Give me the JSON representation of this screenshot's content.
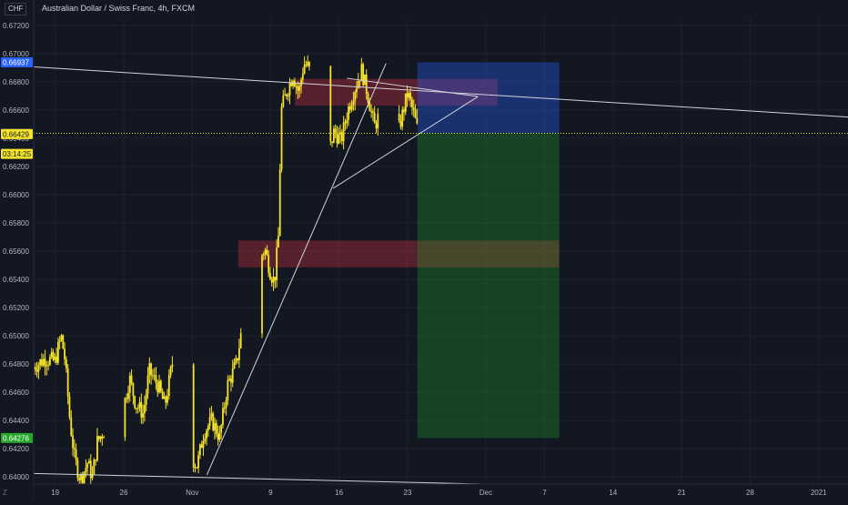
{
  "header": {
    "currency_badge": "CHF",
    "title": "Australian Dollar / Swiss Franc, 4h, FXCM"
  },
  "corner_label": "Z",
  "price_axis": {
    "ticks": [
      0.672,
      0.67,
      0.668,
      0.666,
      0.664,
      0.662,
      0.66,
      0.658,
      0.656,
      0.654,
      0.652,
      0.65,
      0.648,
      0.646,
      0.644,
      0.642,
      0.64
    ],
    "tick_labels": [
      "0.67200",
      "0.67000",
      "0.66800",
      "0.66600",
      "0.66400",
      "0.66200",
      "0.66000",
      "0.65800",
      "0.65600",
      "0.65400",
      "0.65200",
      "0.65000",
      "0.64800",
      "0.64600",
      "0.64400",
      "0.64200",
      "0.64000"
    ],
    "badges": [
      {
        "label": "0.66937",
        "value": 0.66937,
        "bg": "#2962ff",
        "fg": "#ffffff"
      },
      {
        "label": "0.66435",
        "value": 0.66435,
        "bg": "#363a45",
        "fg": "#ffffff"
      },
      {
        "label": "0.66429",
        "value": 0.66429,
        "bg": "#f5e22b",
        "fg": "#131722"
      },
      {
        "label": "03:14:25",
        "value": 0.66289,
        "bg": "#f5e22b",
        "fg": "#131722"
      },
      {
        "label": "0.64276",
        "value": 0.64276,
        "bg": "#26a62a",
        "fg": "#ffffff"
      }
    ]
  },
  "time_axis": {
    "ticks": [
      {
        "label": "19",
        "day": 0
      },
      {
        "label": "26",
        "day": 7
      },
      {
        "label": "Nov",
        "day": 14
      },
      {
        "label": "9",
        "day": 22
      },
      {
        "label": "16",
        "day": 29
      },
      {
        "label": "23",
        "day": 36
      },
      {
        "label": "Dec",
        "day": 44
      },
      {
        "label": "7",
        "day": 50
      },
      {
        "label": "14",
        "day": 57
      },
      {
        "label": "21",
        "day": 64
      },
      {
        "label": "28",
        "day": 71
      },
      {
        "label": "2021",
        "day": 78
      }
    ]
  },
  "chart_data": {
    "type": "candlestick",
    "title": "Australian Dollar / Swiss Franc, 4h, FXCM",
    "ylim": [
      0.6395,
      0.6725
    ],
    "x_unit": "days since Oct 19 2020",
    "xlim": [
      -2.2,
      81
    ],
    "current_price": 0.66429,
    "price_line": 0.66435,
    "path_keypoints": [
      [
        -2.2,
        0.6478
      ],
      [
        -1,
        0.6484
      ],
      [
        0,
        0.6482
      ],
      [
        0.6,
        0.65
      ],
      [
        1,
        0.6483
      ],
      [
        1.5,
        0.644
      ],
      [
        2,
        0.6412
      ],
      [
        2.6,
        0.6398
      ],
      [
        3.3,
        0.641
      ],
      [
        3.8,
        0.64
      ],
      [
        4.3,
        0.6425
      ],
      [
        5,
        0.6433
      ],
      [
        5.8,
        0.6445
      ],
      [
        6.5,
        0.6462
      ],
      [
        7,
        0.645
      ],
      [
        7.6,
        0.647
      ],
      [
        8.2,
        0.6452
      ],
      [
        9,
        0.6445
      ],
      [
        9.6,
        0.6475
      ],
      [
        10.5,
        0.6465
      ],
      [
        11.2,
        0.645
      ],
      [
        12,
        0.6482
      ],
      [
        12.6,
        0.645
      ],
      [
        13.2,
        0.642
      ],
      [
        13.8,
        0.6415
      ],
      [
        14.5,
        0.6408
      ],
      [
        15.2,
        0.6432
      ],
      [
        16,
        0.644
      ],
      [
        16.8,
        0.6428
      ],
      [
        17.6,
        0.6465
      ],
      [
        18.5,
        0.648
      ],
      [
        19.3,
        0.6515
      ],
      [
        20.1,
        0.6528
      ],
      [
        20.7,
        0.655
      ],
      [
        21.4,
        0.6562
      ],
      [
        22,
        0.6545
      ],
      [
        22.4,
        0.6538
      ],
      [
        22.8,
        0.657
      ],
      [
        23.1,
        0.666
      ],
      [
        23.6,
        0.6672
      ],
      [
        24.3,
        0.6685
      ],
      [
        24.9,
        0.6672
      ],
      [
        25.4,
        0.6693
      ],
      [
        25.9,
        0.669
      ],
      [
        26.6,
        0.6672
      ],
      [
        27.2,
        0.665
      ],
      [
        27.9,
        0.6628
      ],
      [
        28.5,
        0.6645
      ],
      [
        29.2,
        0.6638
      ],
      [
        29.9,
        0.666
      ],
      [
        30.6,
        0.6675
      ],
      [
        31.3,
        0.6688
      ],
      [
        31.9,
        0.6672
      ],
      [
        32.6,
        0.6648
      ],
      [
        33.3,
        0.666
      ],
      [
        34,
        0.664
      ],
      [
        34.6,
        0.663
      ],
      [
        35.3,
        0.6652
      ],
      [
        36,
        0.6672
      ],
      [
        36.6,
        0.6658
      ],
      [
        37.1,
        0.6643
      ]
    ],
    "annotations": {
      "zones": [
        {
          "name": "supply-zone-upper",
          "x0": 24.5,
          "x1": 45.2,
          "y0": 0.6663,
          "y1": 0.6682,
          "color": "rgba(242,54,69,0.30)"
        },
        {
          "name": "supply-zone-lower",
          "x0": 18.7,
          "x1": 51.5,
          "y0": 0.65485,
          "y1": 0.65675,
          "color": "rgba(242,54,69,0.30)"
        }
      ],
      "position": {
        "x0": 37.0,
        "x1": 51.5,
        "entry": 0.66435,
        "stop": 0.66937,
        "target": 0.64276,
        "stop_color": "rgba(41,98,255,0.35)",
        "target_color": "rgba(38,166,42,0.30)"
      },
      "trendlines": [
        {
          "name": "trendline-upper-resistance",
          "x0": -2.2,
          "y0": 0.66905,
          "x1": 81,
          "y1": 0.6655
        },
        {
          "name": "trendline-lower-support",
          "x0": -2.2,
          "y0": 0.64025,
          "x1": 44.7,
          "y1": 0.63948
        },
        {
          "name": "trendline-rising-support",
          "x0": 15.5,
          "y0": 0.64015,
          "x1": 33.8,
          "y1": 0.6693
        },
        {
          "name": "triangle-lower-leg",
          "x0": 28.4,
          "y0": 0.66045,
          "x1": 43.2,
          "y1": 0.66695
        },
        {
          "name": "triangle-upper-leg",
          "x0": 29.8,
          "y0": 0.66825,
          "x1": 43.2,
          "y1": 0.66695
        }
      ]
    }
  },
  "colors": {
    "background": "#131722",
    "candle": "#f5e22b",
    "grid": "#1e222d",
    "axis_text": "#b2b5be",
    "trendline": "#d1d4dc",
    "price_line": "#f5e22b"
  }
}
